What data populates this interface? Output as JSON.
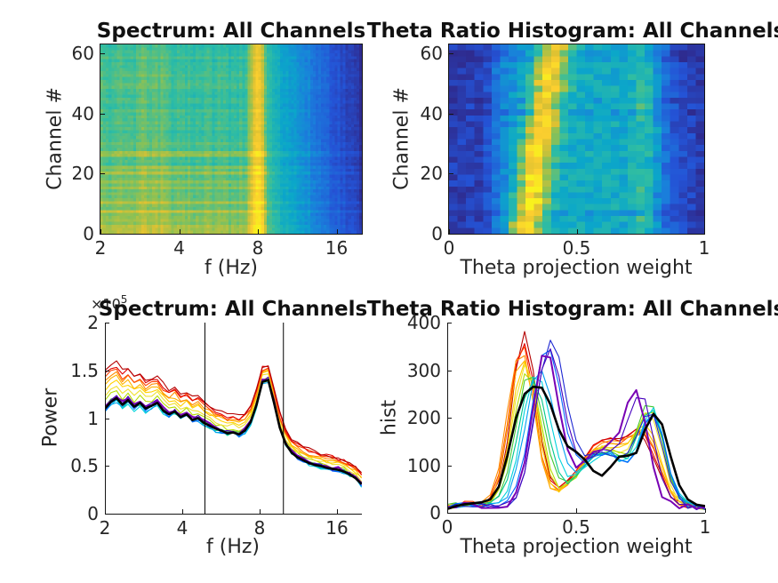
{
  "figure": {
    "background": "#ffffff"
  },
  "titles": {
    "spectrum": "Spectrum: All Channels",
    "theta": "Theta Ratio Histogram: All Channels"
  },
  "axis_labels": {
    "freq": "f (Hz)",
    "theta_weight": "Theta projection weight",
    "channel": "Channel #",
    "power": "Power",
    "hist": "hist"
  },
  "exponent": {
    "base": "×10",
    "power": "5"
  },
  "colors": {
    "text": "#262626",
    "title": "#111111",
    "spine": "#151515",
    "vline": "#000000",
    "black_line": "#000000",
    "parula": [
      [
        0.0,
        "#2e2b8f"
      ],
      [
        0.15,
        "#2453d6"
      ],
      [
        0.3,
        "#1a7fdb"
      ],
      [
        0.42,
        "#0ba7c9"
      ],
      [
        0.55,
        "#30bda2"
      ],
      [
        0.68,
        "#8ec153"
      ],
      [
        0.8,
        "#dcc132"
      ],
      [
        0.9,
        "#fccf2f"
      ],
      [
        1.0,
        "#f8f21d"
      ]
    ],
    "line_palette": [
      "#b40000",
      "#e00000",
      "#ff4000",
      "#ff8c00",
      "#ffb400",
      "#ffd200",
      "#f0e130",
      "#b4dc00",
      "#46c832",
      "#00c88c",
      "#00d2dc",
      "#00a0f0",
      "#0064ff",
      "#1e28d2",
      "#4600be",
      "#7800b4"
    ]
  },
  "chart_data": [
    {
      "name": "spectrum-heatmap",
      "type": "heatmap",
      "title": "Spectrum: All Channels",
      "xlabel": "f (Hz)",
      "ylabel": "Channel #",
      "xscale": "log2",
      "xlim": [
        2,
        20
      ],
      "xticks": [
        2,
        4,
        8,
        16
      ],
      "yticks": [
        0,
        20,
        40,
        60
      ],
      "n_channels": 64,
      "n_freq_bins": 96,
      "pattern": {
        "base_low": 0.57,
        "base_slope": 0.04,
        "cut_t": 0.62,
        "end_val": 0.02,
        "theta_center_t": 0.602,
        "theta_amp": 0.3,
        "theta_width": 0.03,
        "delta_center_t": 0.176,
        "delta_amp": 0.05,
        "narrow_line_t": 0.24,
        "narrow_line_amp": 0.04,
        "channel_gain": 0.16,
        "channel_decay": 12,
        "row_noise": 0.07,
        "col_noise": 0.06,
        "cell_noise": 0.05,
        "seed": 11
      }
    },
    {
      "name": "theta-ratio-heatmap",
      "type": "heatmap",
      "title": "Theta Ratio Histogram: All Channels",
      "xlabel": "Theta projection weight",
      "ylabel": "Channel #",
      "xscale": "linear",
      "xlim": [
        0,
        1
      ],
      "xticks": [
        0,
        0.5,
        1
      ],
      "yticks": [
        0,
        20,
        40,
        60
      ],
      "n_channels": 64,
      "rows": 32,
      "cols": 30,
      "pattern": {
        "pedestal": [
          [
            0,
            0.07
          ],
          [
            0.12,
            0.09
          ],
          [
            0.18,
            0.28
          ],
          [
            0.25,
            0.38
          ],
          [
            0.45,
            0.45
          ],
          [
            0.65,
            0.45
          ],
          [
            0.72,
            0.42
          ],
          [
            0.82,
            0.33
          ],
          [
            0.9,
            0.15
          ],
          [
            1,
            0.07
          ]
        ],
        "band1_center_lo": 0.295,
        "band1_center_hi": 0.41,
        "band1_width": 0.045,
        "band1_amp_lo": 0.58,
        "band1_amp_hi": 0.46,
        "band2_center": 0.775,
        "band2_amp": 0.16,
        "band2_width": 0.035,
        "cell_noise": 0.07,
        "seed": 22
      }
    },
    {
      "name": "spectrum-lines",
      "type": "line",
      "title": "Spectrum: All Channels",
      "xlabel": "f (Hz)",
      "ylabel": "Power",
      "xscale": "log2",
      "xlim": [
        2,
        20
      ],
      "ylim": [
        0,
        2
      ],
      "y_exponent": 5,
      "xticks": [
        2,
        4,
        8,
        16
      ],
      "yticks": [
        0,
        0.5,
        1,
        1.5,
        2
      ],
      "vlines_hz": [
        4.9,
        9.9
      ],
      "f_hz": [
        2.0,
        2.11,
        2.22,
        2.34,
        2.46,
        2.6,
        2.74,
        2.88,
        3.04,
        3.2,
        3.37,
        3.55,
        3.74,
        3.94,
        4.16,
        4.38,
        4.61,
        4.86,
        5.12,
        5.4,
        5.69,
        5.99,
        6.31,
        6.65,
        7.01,
        7.38,
        7.78,
        8.2,
        8.64,
        9.1,
        9.59,
        10.1,
        10.65,
        11.22,
        11.82,
        12.45,
        13.12,
        13.83,
        14.57,
        15.35,
        16.17,
        17.04,
        17.96,
        18.92,
        19.94
      ],
      "mean_power": [
        1.1,
        1.17,
        1.21,
        1.14,
        1.19,
        1.12,
        1.16,
        1.1,
        1.13,
        1.16,
        1.08,
        1.04,
        1.07,
        1.01,
        1.04,
        0.98,
        1.0,
        0.95,
        0.92,
        0.89,
        0.87,
        0.84,
        0.85,
        0.83,
        0.87,
        0.96,
        1.14,
        1.38,
        1.4,
        1.16,
        0.9,
        0.73,
        0.64,
        0.59,
        0.56,
        0.53,
        0.51,
        0.5,
        0.48,
        0.47,
        0.46,
        0.44,
        0.41,
        0.37,
        0.31
      ],
      "series_offsets": [
        0.4,
        0.36,
        0.32,
        0.28,
        0.24,
        0.2,
        0.15,
        0.08,
        0.02,
        -0.02,
        -0.04,
        -0.03,
        -0.01,
        0.01,
        0.02,
        0.03
      ],
      "offset_decay": {
        "floor": 0.22,
        "scale": 0.78,
        "tau": 20
      },
      "jitter": 0.022,
      "seed": 33
    },
    {
      "name": "theta-hist-lines",
      "type": "line",
      "title": "Theta Ratio Histogram: All Channels",
      "xlabel": "Theta projection weight",
      "ylabel": "hist",
      "xscale": "linear",
      "xlim": [
        0,
        1
      ],
      "ylim": [
        0,
        400
      ],
      "xticks": [
        0,
        0.5,
        1
      ],
      "yticks": [
        0,
        100,
        200,
        300,
        400
      ],
      "x": [
        0.0,
        0.033,
        0.067,
        0.1,
        0.133,
        0.167,
        0.2,
        0.233,
        0.267,
        0.3,
        0.333,
        0.367,
        0.4,
        0.433,
        0.467,
        0.5,
        0.533,
        0.567,
        0.6,
        0.633,
        0.667,
        0.7,
        0.733,
        0.767,
        0.8,
        0.833,
        0.867,
        0.9,
        0.933,
        0.967,
        1.0
      ],
      "mean_hist": [
        8,
        14,
        18,
        20,
        22,
        28,
        55,
        120,
        200,
        250,
        265,
        263,
        228,
        175,
        140,
        128,
        112,
        88,
        78,
        96,
        118,
        120,
        126,
        175,
        208,
        186,
        118,
        58,
        28,
        17,
        14
      ],
      "pedestal": 12,
      "shelf": {
        "c": 0.08,
        "h": 7,
        "w": 0.05
      },
      "mid_center": 0.61,
      "mid_width": 0.1,
      "series_params": [
        [
          0.3,
          365,
          0.048,
          140,
          0.76,
          105,
          0.055
        ],
        [
          0.295,
          350,
          0.05,
          140,
          0.765,
          112,
          0.055
        ],
        [
          0.29,
          340,
          0.05,
          138,
          0.77,
          115,
          0.054
        ],
        [
          0.285,
          330,
          0.052,
          135,
          0.77,
          120,
          0.054
        ],
        [
          0.29,
          318,
          0.05,
          132,
          0.775,
          128,
          0.053
        ],
        [
          0.3,
          308,
          0.05,
          128,
          0.78,
          145,
          0.052
        ],
        [
          0.305,
          296,
          0.052,
          124,
          0.785,
          168,
          0.051
        ],
        [
          0.31,
          286,
          0.053,
          120,
          0.79,
          185,
          0.05
        ],
        [
          0.32,
          278,
          0.054,
          116,
          0.79,
          195,
          0.05
        ],
        [
          0.33,
          268,
          0.056,
          114,
          0.795,
          190,
          0.05
        ],
        [
          0.345,
          272,
          0.056,
          112,
          0.8,
          185,
          0.049
        ],
        [
          0.36,
          288,
          0.057,
          112,
          0.8,
          180,
          0.048
        ],
        [
          0.385,
          326,
          0.058,
          114,
          0.8,
          175,
          0.048
        ],
        [
          0.4,
          338,
          0.058,
          116,
          0.79,
          180,
          0.048
        ],
        [
          0.395,
          322,
          0.055,
          118,
          0.755,
          195,
          0.049
        ],
        [
          0.38,
          328,
          0.05,
          122,
          0.735,
          190,
          0.044
        ]
      ],
      "jitter": 6,
      "seed": 44
    }
  ]
}
